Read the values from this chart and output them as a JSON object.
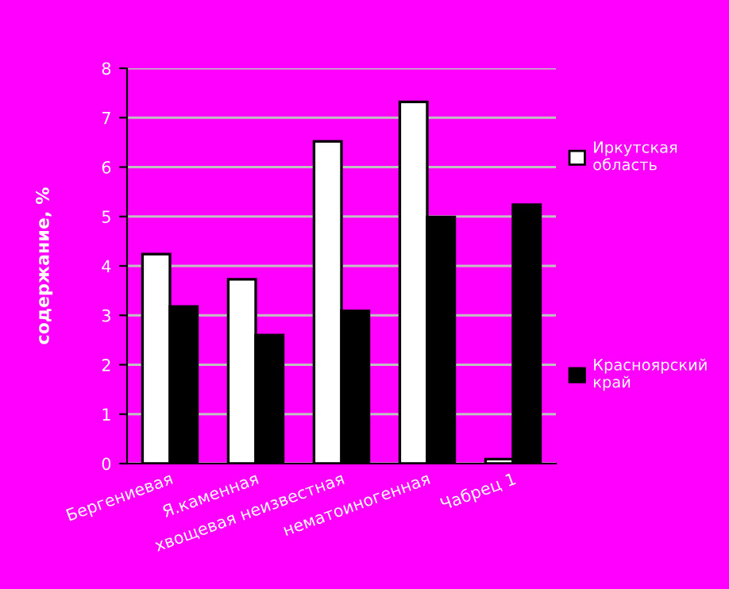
{
  "chart_data": {
    "type": "bar",
    "ylabel": "содержание, %",
    "categories": [
      "Бергениевая",
      "Я.каменная",
      "хвощевая неизвестная",
      "нематоиногенная",
      "Чабрец 1"
    ],
    "series": [
      {
        "name": "Иркутская область",
        "color": "#ffffff",
        "values": [
          4.24,
          3.73,
          6.52,
          7.32,
          0.09
        ]
      },
      {
        "name": "Красноярский край",
        "color": "#000000",
        "values": [
          3.18,
          2.6,
          3.09,
          4.99,
          5.24
        ]
      }
    ],
    "ylim": [
      0,
      8
    ],
    "yticks": [
      0,
      1,
      2,
      3,
      4,
      5,
      6,
      7,
      8
    ],
    "grid": "y",
    "legend": "right"
  }
}
